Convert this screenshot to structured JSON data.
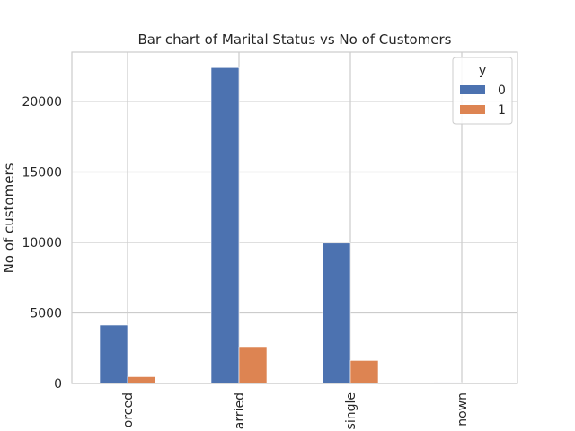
{
  "chart_data": {
    "type": "bar",
    "title": "Bar chart of Marital Status vs No of Customers",
    "xlabel": "",
    "ylabel": "No of customers",
    "categories": [
      "orced",
      "arried",
      "single",
      "nown"
    ],
    "series": [
      {
        "name": "0",
        "values": [
          4140,
          22400,
          9950,
          70
        ],
        "color": "#4c72b0"
      },
      {
        "name": "1",
        "values": [
          480,
          2550,
          1630,
          10
        ],
        "color": "#dd8452"
      }
    ],
    "ylim": [
      0,
      23500
    ],
    "yticks": [
      0,
      5000,
      10000,
      15000,
      20000
    ],
    "ytick_labels": [
      "0",
      "5000",
      "10000",
      "15000",
      "20000"
    ],
    "grid": true,
    "legend": {
      "title": "y",
      "placement": "top-right"
    },
    "colors": {
      "grid": "#cccccc",
      "axes_edge": "#cccccc",
      "text": "#262626"
    }
  }
}
